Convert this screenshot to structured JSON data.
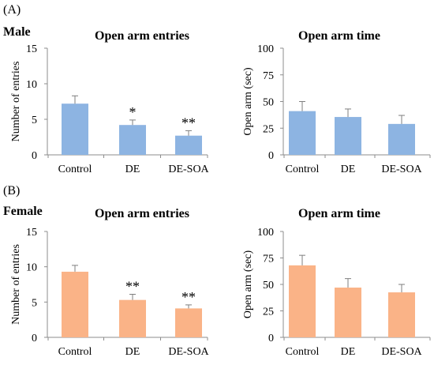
{
  "panels": [
    {
      "letter": "(A)",
      "sex": "Male"
    },
    {
      "letter": "(B)",
      "sex": "Female"
    }
  ],
  "chart_data": [
    {
      "type": "bar",
      "panel": "(A) Male",
      "title": "Open arm entries",
      "xlabel": "",
      "ylabel": "Number of entries",
      "categories": [
        "Control",
        "DE",
        "DE-SOA"
      ],
      "series": [
        {
          "values": [
            7.2,
            4.2,
            2.7
          ],
          "errors": [
            1.1,
            0.7,
            0.7
          ]
        }
      ],
      "significance": [
        "",
        "*",
        "**"
      ],
      "ylim": [
        0,
        15
      ],
      "yticks": [
        0,
        5,
        10,
        15
      ],
      "color": "#8db4e2"
    },
    {
      "type": "bar",
      "panel": "(A) Male",
      "title": "Open arm time",
      "xlabel": "",
      "ylabel": "Open arm (sec)",
      "categories": [
        "Control",
        "DE",
        "DE-SOA"
      ],
      "series": [
        {
          "values": [
            41,
            35.5,
            29
          ],
          "errors": [
            9,
            7.5,
            8
          ]
        }
      ],
      "significance": [
        "",
        "",
        ""
      ],
      "ylim": [
        0,
        100
      ],
      "yticks": [
        0,
        25,
        50,
        75,
        100
      ],
      "color": "#8db4e2"
    },
    {
      "type": "bar",
      "panel": "(B) Female",
      "title": "Open arm entries",
      "xlabel": "",
      "ylabel": "Number of entries",
      "categories": [
        "Control",
        "DE",
        "DE-SOA"
      ],
      "series": [
        {
          "values": [
            9.3,
            5.3,
            4.1
          ],
          "errors": [
            0.9,
            0.8,
            0.5
          ]
        }
      ],
      "significance": [
        "",
        "**",
        "**"
      ],
      "ylim": [
        0,
        15
      ],
      "yticks": [
        0,
        5,
        10,
        15
      ],
      "color": "#fab387"
    },
    {
      "type": "bar",
      "panel": "(B) Female",
      "title": "Open arm time",
      "xlabel": "",
      "ylabel": "Open arm (sec)",
      "categories": [
        "Control",
        "DE",
        "DE-SOA"
      ],
      "series": [
        {
          "values": [
            68,
            47,
            42.5
          ],
          "errors": [
            9.5,
            8.5,
            7.5
          ]
        }
      ],
      "significance": [
        "",
        "",
        ""
      ],
      "ylim": [
        0,
        100
      ],
      "yticks": [
        0,
        25,
        50,
        75,
        100
      ],
      "color": "#fab387"
    }
  ]
}
